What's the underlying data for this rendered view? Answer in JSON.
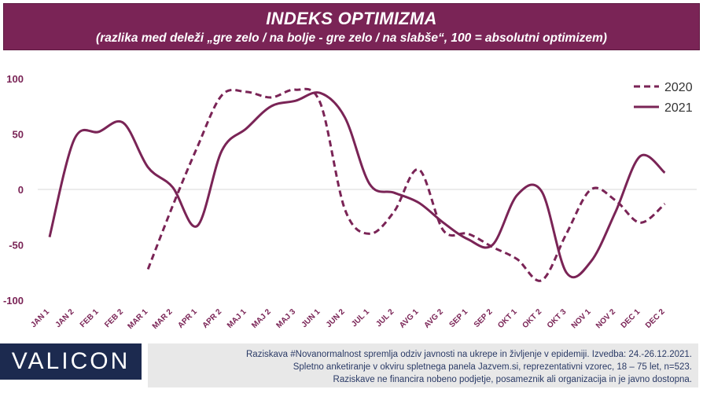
{
  "header": {
    "title": "INDEKS OPTIMIZMA",
    "subtitle": "(razlika med deleži „gre zelo / na bolje - gre zelo / na slabše“, 100 = absolutni optimizem)"
  },
  "chart_data": {
    "type": "line",
    "title": "INDEKS OPTIMIZMA",
    "subtitle": "(razlika med deleži „gre zelo / na bolje - gre zelo / na slabše“, 100 = absolutni optimizem)",
    "xlabel": "",
    "ylabel": "",
    "categories": [
      "JAN 1",
      "JAN 2",
      "FEB 1",
      "FEB 2",
      "MAR 1",
      "MAR 2",
      "APR 1",
      "APR 2",
      "MAJ 1",
      "MAJ 2",
      "MAJ 3",
      "JUN 1",
      "JUN 2",
      "JUL 1",
      "JUL 2",
      "AVG 1",
      "AVG 2",
      "SEP 1",
      "SEP 2",
      "OKT 1",
      "OKT 2",
      "OKT 3",
      "NOV 1",
      "NOV 2",
      "DEC 1",
      "DEC 2"
    ],
    "yticks": [
      100,
      50,
      0,
      -50,
      -100
    ],
    "ylim": [
      -100,
      100
    ],
    "grid": false,
    "legend_position": "top-right",
    "series": [
      {
        "name": "2020",
        "style": "dashed",
        "color": "#7a2456",
        "values": [
          null,
          null,
          null,
          null,
          -72,
          -15,
          38,
          85,
          88,
          83,
          90,
          78,
          -18,
          -40,
          -20,
          18,
          -37,
          -40,
          -52,
          -63,
          -82,
          -40,
          0,
          -10,
          -30,
          -13
        ]
      },
      {
        "name": "2021",
        "style": "solid",
        "color": "#7a2456",
        "values": [
          -43,
          45,
          52,
          60,
          20,
          2,
          -33,
          35,
          55,
          75,
          80,
          87,
          65,
          5,
          -3,
          -12,
          -30,
          -45,
          -50,
          -5,
          -2,
          -75,
          -65,
          -20,
          30,
          15
        ]
      }
    ]
  },
  "footer": {
    "logo": "VALICON",
    "lines": [
      "Raziskava #Novanormalnost spremlja odziv javnosti na ukrepe in življenje v epidemiji. Izvedba: 24.-26.12.2021.",
      "Spletno anketiranje v okviru spletnega panela Jazvem.si, reprezentativni vzorec, 18 – 75 let, n=523.",
      "Raziskave ne financira nobeno podjetje, posameznik ali organizacija in je javno dostopna."
    ]
  }
}
